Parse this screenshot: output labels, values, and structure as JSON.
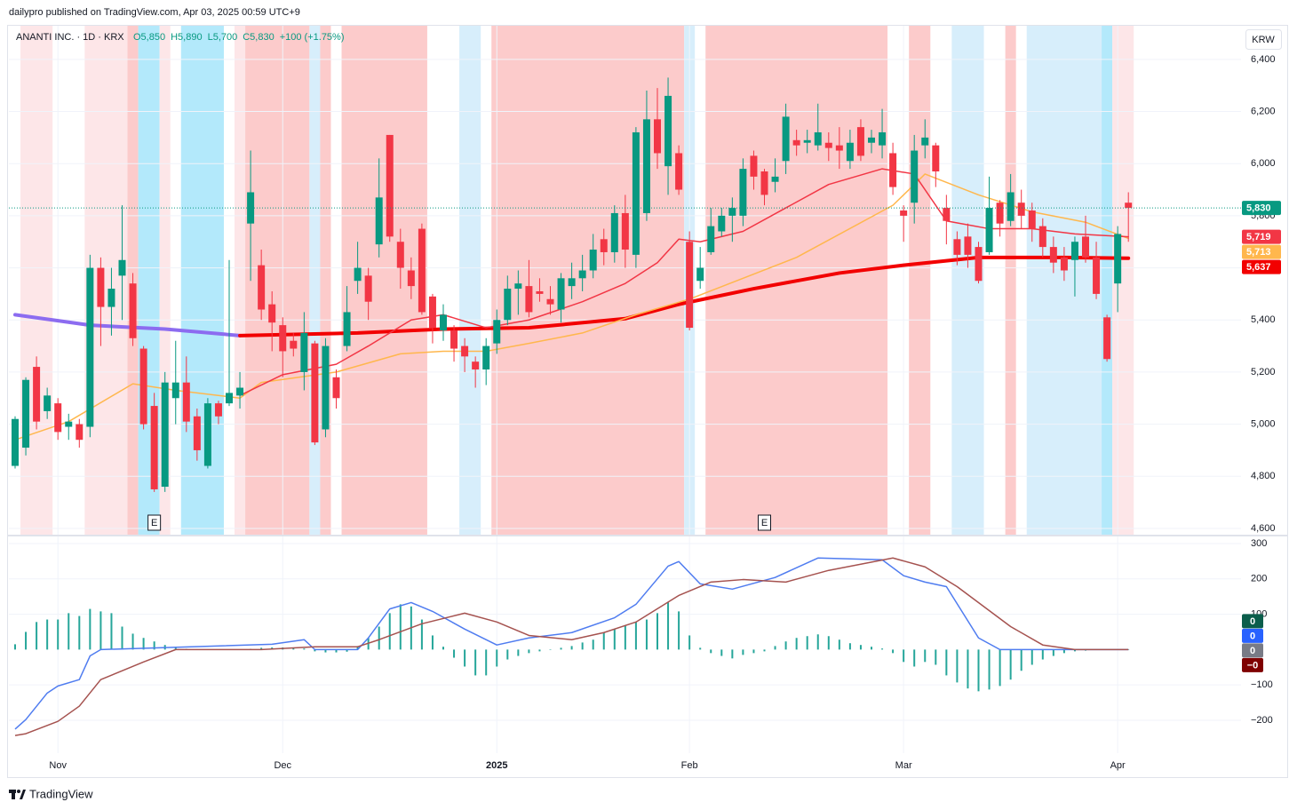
{
  "header": {
    "text": "dailypro published on TradingView.com, Apr 03, 2025 00:59 UTC+9"
  },
  "chart_data": [
    {
      "type": "candlestick",
      "title": "ANANTI INC. · 1D · KRX",
      "ohlc_labels": [
        "O5,850",
        "H5,890",
        "L5,700",
        "C5,830",
        "+100 (+1.75%)"
      ],
      "currency": "KRW",
      "last_price_label": "5,830",
      "up_color": "#089981",
      "down_color": "#f23645",
      "grid": true,
      "categories": [
        null,
        null,
        null,
        null,
        "Nov",
        null,
        null,
        null,
        null,
        null,
        null,
        null,
        null,
        null,
        null,
        null,
        null,
        null,
        null,
        null,
        null,
        null,
        null,
        null,
        null,
        "Dec",
        null,
        null,
        null,
        null,
        null,
        null,
        null,
        null,
        null,
        null,
        null,
        null,
        null,
        null,
        null,
        null,
        null,
        null,
        null,
        "2025",
        null,
        null,
        null,
        null,
        null,
        null,
        null,
        null,
        null,
        null,
        null,
        null,
        null,
        null,
        null,
        null,
        null,
        "Feb",
        null,
        null,
        null,
        null,
        null,
        null,
        null,
        null,
        null,
        null,
        null,
        null,
        null,
        null,
        null,
        null,
        null,
        null,
        null,
        "Mar",
        null,
        null,
        null,
        null,
        null,
        null,
        null,
        null,
        null,
        null,
        null,
        null,
        null,
        null,
        null,
        null,
        null,
        null,
        null,
        "Apr",
        null
      ],
      "open": [
        4840,
        4910,
        5220,
        5050,
        5080,
        4990,
        5000,
        4990,
        5600,
        5450,
        5570,
        5540,
        5290,
        5070,
        4760,
        5100,
        5160,
        5030,
        4840,
        5080,
        5080,
        5110,
        5770,
        5610,
        5460,
        5380,
        5320,
        5200,
        5310,
        4980,
        5180,
        5300,
        5550,
        5570,
        5690,
        6110,
        5700,
        5590,
        5750,
        5490,
        5360,
        5360,
        5300,
        5240,
        5210,
        5310,
        5400,
        5520,
        5530,
        5510,
        5480,
        5440,
        5530,
        5560,
        5590,
        5710,
        5660,
        5810,
        5650,
        5810,
        6170,
        5990,
        6040,
        5700,
        5550,
        5660,
        5740,
        5800,
        5800,
        6030,
        5970,
        5930,
        6010,
        6090,
        6080,
        6070,
        6080,
        6070,
        6010,
        6140,
        6080,
        6070,
        6040,
        5820,
        5850,
        6070,
        6070,
        5830,
        5710,
        5720,
        5680,
        5660,
        5850,
        5780,
        5850,
        5820,
        5760,
        5680,
        5640,
        5630,
        5720,
        5640,
        5410,
        5540,
        5850
      ],
      "high": [
        5030,
        5180,
        5260,
        5140,
        5100,
        5040,
        5020,
        5650,
        5640,
        5600,
        5840,
        5580,
        5300,
        5120,
        5200,
        5320,
        5260,
        5060,
        5100,
        5090,
        5630,
        5200,
        6050,
        5670,
        5510,
        5410,
        5350,
        5430,
        5320,
        5330,
        5210,
        5530,
        5700,
        5600,
        6020,
        6110,
        5750,
        5640,
        5770,
        5500,
        5460,
        5380,
        5330,
        5260,
        5330,
        5440,
        5570,
        5590,
        5630,
        5560,
        5530,
        5580,
        5620,
        5650,
        5730,
        5750,
        5840,
        5880,
        6140,
        6280,
        6290,
        6330,
        6070,
        5740,
        5680,
        5830,
        5830,
        5870,
        6020,
        6050,
        5980,
        6020,
        6230,
        6130,
        6130,
        6230,
        6120,
        6140,
        6130,
        6170,
        6130,
        6210,
        6080,
        5840,
        6110,
        6170,
        6080,
        5880,
        5740,
        5770,
        5700,
        5950,
        5860,
        5960,
        5900,
        5850,
        5790,
        5720,
        5680,
        5720,
        5800,
        5700,
        5420,
        5760,
        5890
      ],
      "low": [
        4830,
        4880,
        4980,
        5020,
        4940,
        4940,
        4910,
        4950,
        5300,
        5340,
        5400,
        5300,
        4980,
        4740,
        4740,
        5000,
        4970,
        4860,
        4830,
        5000,
        5070,
        5060,
        5550,
        5400,
        5280,
        5180,
        5260,
        5130,
        4920,
        4950,
        5060,
        5280,
        5500,
        5400,
        5640,
        5700,
        5520,
        5480,
        5420,
        5310,
        5320,
        5240,
        5200,
        5140,
        5150,
        5270,
        5380,
        5420,
        5410,
        5470,
        5420,
        5390,
        5480,
        5510,
        5560,
        5610,
        5620,
        5600,
        5600,
        5780,
        5980,
        5880,
        5880,
        5360,
        5520,
        5650,
        5720,
        5700,
        5760,
        5900,
        5840,
        5890,
        5960,
        6030,
        6040,
        6050,
        6010,
        5980,
        5980,
        6010,
        6040,
        6020,
        5880,
        5700,
        5770,
        6020,
        5910,
        5690,
        5610,
        5600,
        5540,
        5650,
        5720,
        5760,
        5750,
        5700,
        5640,
        5580,
        5550,
        5490,
        5620,
        5480,
        5240,
        5430,
        5700
      ],
      "close": [
        5020,
        5170,
        5010,
        5110,
        4970,
        5010,
        4940,
        5600,
        5450,
        5520,
        5630,
        5330,
        5000,
        4750,
        5160,
        5160,
        5010,
        4900,
        5080,
        5030,
        5120,
        5140,
        5890,
        5440,
        5390,
        5280,
        5290,
        5350,
        4930,
        5300,
        5100,
        5430,
        5600,
        5470,
        5870,
        5720,
        5600,
        5530,
        5430,
        5370,
        5420,
        5290,
        5260,
        5210,
        5300,
        5400,
        5520,
        5540,
        5430,
        5500,
        5460,
        5560,
        5560,
        5590,
        5670,
        5660,
        5810,
        5670,
        6120,
        6170,
        6040,
        6260,
        5900,
        5370,
        5600,
        5760,
        5800,
        5830,
        5980,
        5950,
        5880,
        5950,
        6180,
        6070,
        6090,
        6120,
        6060,
        6050,
        6080,
        6030,
        6100,
        6120,
        5910,
        5800,
        6050,
        6100,
        5970,
        5780,
        5650,
        5650,
        5550,
        5830,
        5770,
        5890,
        5800,
        5750,
        5680,
        5620,
        5590,
        5700,
        5640,
        5500,
        5250,
        5730,
        5830
      ],
      "ylim": [
        4576,
        6529
      ],
      "yticks": [
        {
          "value": 4600,
          "label": "4,600"
        },
        {
          "value": 4800,
          "label": "4,800"
        },
        {
          "value": 5000,
          "label": "5,000"
        },
        {
          "value": 5200,
          "label": "5,200"
        },
        {
          "value": 5400,
          "label": "5,400"
        },
        {
          "value": 5600,
          "label": "5,600"
        },
        {
          "value": 5800,
          "label": "5,800"
        },
        {
          "value": 6000,
          "label": "6,000"
        },
        {
          "value": 6200,
          "label": "6,200"
        },
        {
          "value": 6400,
          "label": "6,400"
        }
      ],
      "bands": [
        {
          "from": 1,
          "to": 3,
          "color": "#fde6e8"
        },
        {
          "from": 7,
          "to": 10,
          "color": "#fde6e8"
        },
        {
          "from": 11,
          "to": 11,
          "color": "#fccbcb"
        },
        {
          "from": 12,
          "to": 13,
          "color": "#b3e9fb"
        },
        {
          "from": 14,
          "to": 14,
          "color": "#fde6e8"
        },
        {
          "from": 16,
          "to": 19,
          "color": "#b3e9fb"
        },
        {
          "from": 21,
          "to": 21,
          "color": "#fde6e8"
        },
        {
          "from": 22,
          "to": 27,
          "color": "#fccbcb"
        },
        {
          "from": 28,
          "to": 28,
          "color": "#d7eefb"
        },
        {
          "from": 29,
          "to": 29,
          "color": "#fccbcb"
        },
        {
          "from": 31,
          "to": 38,
          "color": "#fccbcb"
        },
        {
          "from": 42,
          "to": 43,
          "color": "#d7eefb"
        },
        {
          "from": 45,
          "to": 62,
          "color": "#fccbcb"
        },
        {
          "from": 63,
          "to": 63,
          "color": "#d7eefb"
        },
        {
          "from": 65,
          "to": 81,
          "color": "#fccbcb"
        },
        {
          "from": 84,
          "to": 85,
          "color": "#fccbcb"
        },
        {
          "from": 88,
          "to": 90,
          "color": "#d7eefb"
        },
        {
          "from": 93,
          "to": 93,
          "color": "#fccbcb"
        },
        {
          "from": 95,
          "to": 101,
          "color": "#d7eefb"
        },
        {
          "from": 102,
          "to": 102,
          "color": "#b3e9fb"
        },
        {
          "from": 103,
          "to": 104,
          "color": "#fde6e8"
        }
      ],
      "markers": [
        {
          "index": 13,
          "label": "E"
        },
        {
          "index": 70,
          "label": "E"
        }
      ],
      "overlays": [
        {
          "color": "#8c6cf0",
          "width": 4,
          "x": [
            0,
            7,
            14,
            21
          ],
          "values": [
            5420,
            5380,
            5365,
            5340
          ]
        },
        {
          "color": "#f20000",
          "width": 4,
          "price_label": "5,637",
          "x": [
            21,
            32,
            40,
            48,
            57,
            62,
            69,
            77,
            83,
            90,
            98,
            104
          ],
          "values": [
            5340,
            5350,
            5365,
            5370,
            5405,
            5460,
            5520,
            5580,
            5610,
            5640,
            5640,
            5637
          ]
        },
        {
          "color": "#ffb74d",
          "width": 1.5,
          "price_label": "5,713",
          "x": [
            0,
            5,
            11,
            15,
            21,
            23,
            30,
            36,
            40,
            44,
            48,
            53,
            58,
            63,
            73,
            82,
            85,
            90,
            95,
            100,
            104
          ],
          "values": [
            4940,
            5010,
            5155,
            5130,
            5100,
            5160,
            5200,
            5270,
            5280,
            5280,
            5310,
            5350,
            5420,
            5480,
            5640,
            5840,
            5960,
            5880,
            5815,
            5775,
            5713
          ]
        },
        {
          "color": "#f23645",
          "width": 1.5,
          "price_label": "5,719",
          "x": [
            21,
            25,
            30,
            33,
            37,
            40,
            44,
            48,
            53,
            57,
            60,
            62,
            64,
            68,
            72,
            76,
            81,
            84,
            87,
            91,
            95,
            99,
            104
          ],
          "values": [
            5110,
            5190,
            5230,
            5300,
            5400,
            5420,
            5370,
            5400,
            5470,
            5540,
            5620,
            5710,
            5700,
            5740,
            5830,
            5920,
            5980,
            5960,
            5780,
            5750,
            5750,
            5730,
            5719
          ]
        }
      ]
    },
    {
      "type": "macd",
      "histogram_color": "#26a69a",
      "values": [
        15,
        50,
        78,
        85,
        85,
        103,
        95,
        115,
        108,
        103,
        65,
        45,
        33,
        23,
        13,
        5,
        2,
        1,
        1,
        0,
        0,
        0,
        2,
        5,
        6,
        6,
        4,
        3,
        -5,
        -8,
        -8,
        -6,
        10,
        33,
        65,
        103,
        128,
        122,
        85,
        40,
        8,
        -23,
        -48,
        -73,
        -73,
        -48,
        -28,
        -18,
        -10,
        -5,
        0,
        5,
        10,
        20,
        28,
        48,
        58,
        68,
        78,
        85,
        103,
        133,
        108,
        40,
        5,
        -10,
        -18,
        -25,
        -15,
        -10,
        -5,
        10,
        23,
        33,
        38,
        43,
        38,
        28,
        18,
        13,
        8,
        3,
        -10,
        -35,
        -48,
        -35,
        -43,
        -73,
        -93,
        -110,
        -118,
        -113,
        -103,
        -85,
        -60,
        -43,
        -28,
        -18,
        -10,
        -5,
        -3,
        -1,
        -1,
        -1,
        -1
      ],
      "lines": [
        {
          "color": "#4f7cf0",
          "x": [
            0,
            1,
            3,
            4,
            6,
            7,
            8,
            24,
            27,
            28,
            32,
            33,
            35,
            37,
            39,
            42,
            45,
            48,
            52,
            56,
            58,
            61,
            62,
            64,
            67,
            71,
            75,
            81,
            83,
            85,
            87,
            90,
            92,
            104
          ],
          "values": [
            -225,
            -198,
            -123,
            -103,
            -85,
            -18,
            0,
            15,
            28,
            0,
            0,
            33,
            115,
            133,
            108,
            58,
            13,
            33,
            48,
            90,
            128,
            236,
            249,
            186,
            171,
            204,
            259,
            254,
            209,
            191,
            178,
            33,
            0,
            0
          ]
        },
        {
          "color": "#a5524f",
          "x": [
            0,
            1,
            4,
            6,
            8,
            12,
            15,
            23,
            28,
            32,
            34,
            38,
            42,
            45,
            48,
            52,
            55,
            58,
            62,
            65,
            68,
            72,
            76,
            82,
            85,
            88,
            93,
            96,
            99,
            104
          ],
          "values": [
            -243,
            -238,
            -203,
            -160,
            -85,
            -35,
            0,
            0,
            8,
            8,
            28,
            73,
            103,
            78,
            40,
            28,
            48,
            78,
            153,
            191,
            198,
            191,
            224,
            259,
            234,
            178,
            65,
            13,
            0,
            0
          ]
        }
      ],
      "ylim": [
        -293,
        320
      ],
      "yticks": [
        300,
        200,
        100,
        {
          "value": -100,
          "label": "−100"
        },
        {
          "value": -200,
          "label": "−200"
        }
      ],
      "last_labels": [
        {
          "label": "0",
          "color": "#0b5e4b"
        },
        {
          "label": "0",
          "color": "#2962ff"
        },
        {
          "label": "0",
          "color": "#787b86"
        },
        {
          "label": "−0",
          "color": "#7f0000"
        }
      ]
    }
  ],
  "footer": {
    "brand": "TradingView"
  }
}
